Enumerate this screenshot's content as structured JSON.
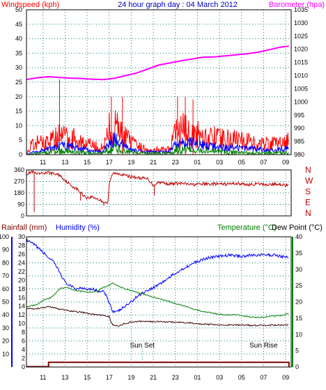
{
  "colors": {
    "wind": "#ff0000",
    "gust": "#0000ff",
    "avg": "#008000",
    "baro": "#ff00ff",
    "dir": "#c00000",
    "hum": "#0000ff",
    "temp": "#008000",
    "dew": "#400000",
    "rain": "#800000",
    "title": "#0000c0",
    "grid": "#008080",
    "text": "#000000"
  },
  "time_ticks": [
    "11",
    "13",
    "15",
    "17",
    "19",
    "21",
    "23",
    "01",
    "03",
    "05",
    "07",
    "09"
  ],
  "chart_data": [
    {
      "type": "line",
      "title": "24 hour graph day : 04 March 2012",
      "y_left_label": "Windspeed (kph)",
      "y_right_label": "Barometer (hpa)",
      "y_left_ticks": [
        0,
        5,
        10,
        15,
        20,
        25,
        30,
        35,
        40,
        45,
        50
      ],
      "y_right_ticks": [
        980,
        985,
        990,
        995,
        1000,
        1005,
        1010,
        1015,
        1020,
        1025,
        1030,
        1035
      ],
      "ylim_left": [
        0,
        50
      ],
      "ylim_right": [
        980,
        1035
      ],
      "barometer": [
        [
          9.5,
          1008.5
        ],
        [
          10.5,
          1009.2
        ],
        [
          11.5,
          1009.6
        ],
        [
          12.5,
          1009.3
        ],
        [
          13.5,
          1009.0
        ],
        [
          14.5,
          1008.9
        ],
        [
          15.5,
          1008.6
        ],
        [
          16.5,
          1008.5
        ],
        [
          17.5,
          1009.0
        ],
        [
          18.5,
          1010.0
        ],
        [
          19.5,
          1011.0
        ],
        [
          20.5,
          1012.5
        ],
        [
          21.5,
          1014.0
        ],
        [
          22.5,
          1014.8
        ],
        [
          23.5,
          1015.6
        ],
        [
          24.5,
          1016.3
        ],
        [
          25.5,
          1017.0
        ],
        [
          26.5,
          1017.1
        ],
        [
          27.5,
          1017.5
        ],
        [
          28.5,
          1017.9
        ],
        [
          29.5,
          1018.3
        ],
        [
          30.5,
          1018.9
        ],
        [
          31.5,
          1019.8
        ],
        [
          32.5,
          1020.8
        ],
        [
          33.3,
          1021.2
        ]
      ],
      "wind_peak_profile": [
        [
          9.5,
          0
        ],
        [
          9.9,
          5
        ],
        [
          10.5,
          7
        ],
        [
          11.5,
          8
        ],
        [
          12.5,
          11
        ],
        [
          13.5,
          10
        ],
        [
          14.5,
          8
        ],
        [
          15.5,
          5
        ],
        [
          16.5,
          4
        ],
        [
          17.0,
          15
        ],
        [
          17.5,
          16
        ],
        [
          18.0,
          14
        ],
        [
          18.5,
          10
        ],
        [
          19.0,
          7
        ],
        [
          19.5,
          5
        ],
        [
          20.5,
          3
        ],
        [
          21.5,
          3
        ],
        [
          22.5,
          3
        ],
        [
          23.0,
          13
        ],
        [
          23.5,
          15
        ],
        [
          24.0,
          14
        ],
        [
          24.5,
          13
        ],
        [
          25.0,
          12
        ],
        [
          25.5,
          11
        ],
        [
          26.5,
          10
        ],
        [
          27.5,
          9
        ],
        [
          28.5,
          9
        ],
        [
          29.5,
          8
        ],
        [
          30.5,
          7
        ],
        [
          31.5,
          6
        ],
        [
          32.5,
          7
        ],
        [
          33.3,
          8
        ]
      ],
      "wind_spikes": [
        [
          12.5,
          26
        ],
        [
          17.2,
          20
        ],
        [
          18.2,
          20
        ],
        [
          23.2,
          20
        ],
        [
          23.9,
          20
        ],
        [
          24.6,
          19
        ]
      ],
      "gust_profile": [
        [
          9.5,
          0
        ],
        [
          10.5,
          2
        ],
        [
          11.5,
          3
        ],
        [
          12.5,
          5
        ],
        [
          13.5,
          4.5
        ],
        [
          14.5,
          3
        ],
        [
          15.5,
          2
        ],
        [
          16.5,
          1.5
        ],
        [
          17.0,
          7
        ],
        [
          17.5,
          8
        ],
        [
          18.0,
          6
        ],
        [
          18.5,
          4
        ],
        [
          19.5,
          2
        ],
        [
          20.5,
          1.5
        ],
        [
          22.5,
          1.5
        ],
        [
          23.0,
          6
        ],
        [
          23.5,
          7
        ],
        [
          24.5,
          6
        ],
        [
          25.5,
          5
        ],
        [
          26.5,
          4
        ],
        [
          27.5,
          3.5
        ],
        [
          28.5,
          3.5
        ],
        [
          29.5,
          3
        ],
        [
          30.5,
          3
        ],
        [
          31.5,
          2.5
        ],
        [
          32.5,
          3
        ],
        [
          33.3,
          3
        ]
      ],
      "avg_profile": [
        [
          9.5,
          0
        ],
        [
          10.5,
          1
        ],
        [
          11.5,
          1.5
        ],
        [
          12.5,
          2.5
        ],
        [
          13.5,
          2
        ],
        [
          14.5,
          1.5
        ],
        [
          15.5,
          1
        ],
        [
          16.5,
          1
        ],
        [
          17.0,
          4
        ],
        [
          17.5,
          4
        ],
        [
          18.0,
          3
        ],
        [
          18.5,
          2
        ],
        [
          19.5,
          1
        ],
        [
          22.5,
          1
        ],
        [
          23.0,
          3
        ],
        [
          23.5,
          3.5
        ],
        [
          24.5,
          3
        ],
        [
          25.5,
          2.5
        ],
        [
          26.5,
          2
        ],
        [
          28.5,
          1.5
        ],
        [
          30.5,
          1
        ],
        [
          32.5,
          1.5
        ],
        [
          33.3,
          1
        ]
      ]
    },
    {
      "type": "line",
      "y_ticks": [
        0,
        90,
        180,
        270,
        360
      ],
      "compass": [
        "N",
        "W",
        "S",
        "E",
        "N"
      ],
      "ylim": [
        0,
        360
      ],
      "direction": [
        [
          9.5,
          330
        ],
        [
          10.0,
          345
        ],
        [
          10.5,
          325
        ],
        [
          11.0,
          335
        ],
        [
          11.5,
          340
        ],
        [
          12.0,
          330
        ],
        [
          12.5,
          320
        ],
        [
          13.0,
          280
        ],
        [
          13.5,
          240
        ],
        [
          14.0,
          215
        ],
        [
          14.5,
          175
        ],
        [
          15.0,
          140
        ],
        [
          15.5,
          150
        ],
        [
          16.0,
          130
        ],
        [
          16.5,
          110
        ],
        [
          16.9,
          100
        ],
        [
          17.0,
          250
        ],
        [
          17.3,
          330
        ],
        [
          17.8,
          335
        ],
        [
          18.5,
          315
        ],
        [
          19.5,
          300
        ],
        [
          20.5,
          290
        ],
        [
          21.0,
          240
        ],
        [
          21.5,
          265
        ],
        [
          22.5,
          250
        ],
        [
          23.5,
          255
        ],
        [
          24.5,
          245
        ],
        [
          25.5,
          250
        ],
        [
          26.5,
          250
        ],
        [
          27.5,
          248
        ],
        [
          28.5,
          255
        ],
        [
          29.5,
          245
        ],
        [
          30.5,
          250
        ],
        [
          31.5,
          245
        ],
        [
          32.5,
          250
        ],
        [
          33.3,
          235
        ]
      ],
      "direction_spikes": [
        [
          10.2,
          30
        ],
        [
          10.3,
          340
        ],
        [
          14.4,
          120
        ],
        [
          16.5,
          80
        ],
        [
          21.1,
          160
        ]
      ]
    },
    {
      "type": "line",
      "y_left_label": "Rainfall (mm)",
      "y_left2_label": "Humidity (%)",
      "y_right_label": "Temperature (°C)",
      "y_right2_label": "Dew Point (°C)",
      "humidity_ticks": [
        10,
        20,
        30,
        40,
        50,
        60,
        70,
        80,
        90,
        100
      ],
      "rain_ticks": [
        0,
        2,
        4,
        6,
        8,
        10,
        12,
        14,
        16,
        18,
        20,
        22,
        24,
        26,
        28,
        30
      ],
      "temp_ticks": [
        0,
        5,
        10,
        15,
        20,
        25,
        30,
        35,
        40
      ],
      "ylim_humidity": [
        0,
        100
      ],
      "ylim_rain": [
        0,
        30
      ],
      "ylim_temp": [
        0,
        40
      ],
      "annotations": [
        "Sun Set",
        "Sun Rise"
      ],
      "humidity": [
        [
          9.5,
          97
        ],
        [
          10.0,
          95
        ],
        [
          10.5,
          92
        ],
        [
          11.0,
          88
        ],
        [
          11.5,
          84
        ],
        [
          12.0,
          80
        ],
        [
          12.5,
          73
        ],
        [
          13.0,
          65
        ],
        [
          13.5,
          62
        ],
        [
          14.0,
          60
        ],
        [
          14.5,
          61
        ],
        [
          15.0,
          60
        ],
        [
          15.5,
          60
        ],
        [
          16.0,
          58
        ],
        [
          16.5,
          58
        ],
        [
          17.0,
          50
        ],
        [
          17.3,
          43
        ],
        [
          17.7,
          42
        ],
        [
          18.0,
          44
        ],
        [
          18.5,
          47
        ],
        [
          19.0,
          50
        ],
        [
          19.5,
          54
        ],
        [
          20.0,
          57
        ],
        [
          21.0,
          61
        ],
        [
          22.0,
          66
        ],
        [
          23.0,
          72
        ],
        [
          24.0,
          77
        ],
        [
          25.0,
          81
        ],
        [
          26.0,
          84
        ],
        [
          27.0,
          85
        ],
        [
          28.0,
          86
        ],
        [
          29.0,
          85
        ],
        [
          30.0,
          86
        ],
        [
          31.0,
          86
        ],
        [
          32.0,
          86
        ],
        [
          33.3,
          84
        ]
      ],
      "temperature": [
        [
          9.5,
          18.5
        ],
        [
          10.5,
          19.2
        ],
        [
          11.0,
          20.5
        ],
        [
          11.5,
          21.0
        ],
        [
          12.0,
          22.0
        ],
        [
          12.5,
          24.0
        ],
        [
          13.0,
          24.5
        ],
        [
          13.5,
          24.0
        ],
        [
          14.0,
          23.5
        ],
        [
          14.5,
          23.2
        ],
        [
          15.0,
          23.0
        ],
        [
          15.5,
          23.0
        ],
        [
          16.0,
          23.5
        ],
        [
          16.5,
          24.5
        ],
        [
          17.0,
          25.0
        ],
        [
          17.3,
          26.0
        ],
        [
          17.7,
          25.0
        ],
        [
          18.5,
          24.0
        ],
        [
          19.5,
          23.0
        ],
        [
          20.5,
          22.0
        ],
        [
          21.5,
          21.0
        ],
        [
          22.5,
          20.0
        ],
        [
          23.5,
          19.0
        ],
        [
          24.5,
          18.0
        ],
        [
          25.5,
          17.0
        ],
        [
          26.5,
          16.5
        ],
        [
          27.5,
          16.0
        ],
        [
          28.5,
          16.0
        ],
        [
          29.5,
          15.5
        ],
        [
          30.5,
          15.2
        ],
        [
          31.5,
          15.5
        ],
        [
          32.5,
          15.8
        ],
        [
          33.3,
          16.5
        ]
      ],
      "dewpoint": [
        [
          9.5,
          18.0
        ],
        [
          10.5,
          17.9
        ],
        [
          11.0,
          18.2
        ],
        [
          11.5,
          18.5
        ],
        [
          12.0,
          18.3
        ],
        [
          12.5,
          17.8
        ],
        [
          13.0,
          17.5
        ],
        [
          13.5,
          17.2
        ],
        [
          14.0,
          17.0
        ],
        [
          14.5,
          16.8
        ],
        [
          15.0,
          16.5
        ],
        [
          15.5,
          16.2
        ],
        [
          16.0,
          16.0
        ],
        [
          16.5,
          15.8
        ],
        [
          17.0,
          15.5
        ],
        [
          17.2,
          13.5
        ],
        [
          17.5,
          12.5
        ],
        [
          18.0,
          12.8
        ],
        [
          18.5,
          13.5
        ],
        [
          19.0,
          13.8
        ],
        [
          19.5,
          14.0
        ],
        [
          20.5,
          14.0
        ],
        [
          21.5,
          14.0
        ],
        [
          22.5,
          13.8
        ],
        [
          23.5,
          13.7
        ],
        [
          24.5,
          13.5
        ],
        [
          25.5,
          13.2
        ],
        [
          26.5,
          13.0
        ],
        [
          27.5,
          12.9
        ],
        [
          28.5,
          12.9
        ],
        [
          29.5,
          12.8
        ],
        [
          30.5,
          12.8
        ],
        [
          31.5,
          12.8
        ],
        [
          32.5,
          12.9
        ],
        [
          33.3,
          13.0
        ]
      ],
      "rainfall": [
        [
          9.5,
          0
        ],
        [
          11.5,
          0
        ],
        [
          11.5,
          1
        ],
        [
          33.3,
          1
        ],
        [
          33.3,
          0
        ]
      ],
      "sunset_hour": 20.0,
      "sunrise_hour": 31.0
    }
  ]
}
